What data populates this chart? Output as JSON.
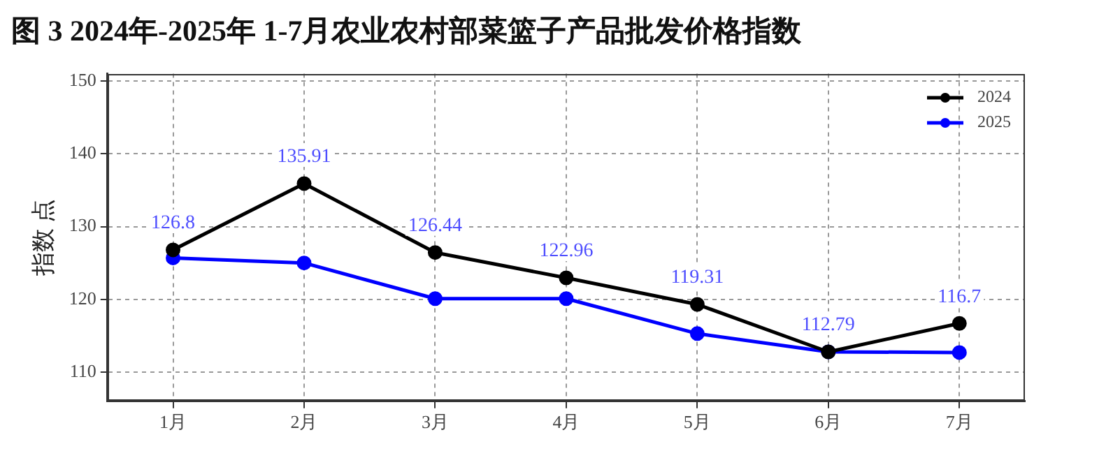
{
  "chart_data": {
    "type": "line",
    "title": "图 3 2024年-2025年 1-7月农业农村部菜篮子产品批发价格指数",
    "ylabel": "指数 点",
    "categories": [
      "1月",
      "2月",
      "3月",
      "4月",
      "5月",
      "6月",
      "7月"
    ],
    "series": [
      {
        "name": "2024",
        "color": "#000000",
        "values": [
          126.8,
          135.91,
          126.44,
          122.96,
          119.31,
          112.79,
          116.7
        ],
        "value_labels": [
          "126.8",
          "135.91",
          "126.44",
          "122.96",
          "119.31",
          "112.79",
          "116.7"
        ]
      },
      {
        "name": "2025",
        "color": "#0000ff",
        "values": [
          125.7,
          125.0,
          120.1,
          120.1,
          115.3,
          112.8,
          112.7
        ]
      }
    ],
    "ylim": [
      106,
      151
    ],
    "yticks": [
      110,
      120,
      130,
      140,
      150
    ],
    "grid": true,
    "legend": "top right",
    "marker": "circle",
    "line_style": "solid"
  }
}
